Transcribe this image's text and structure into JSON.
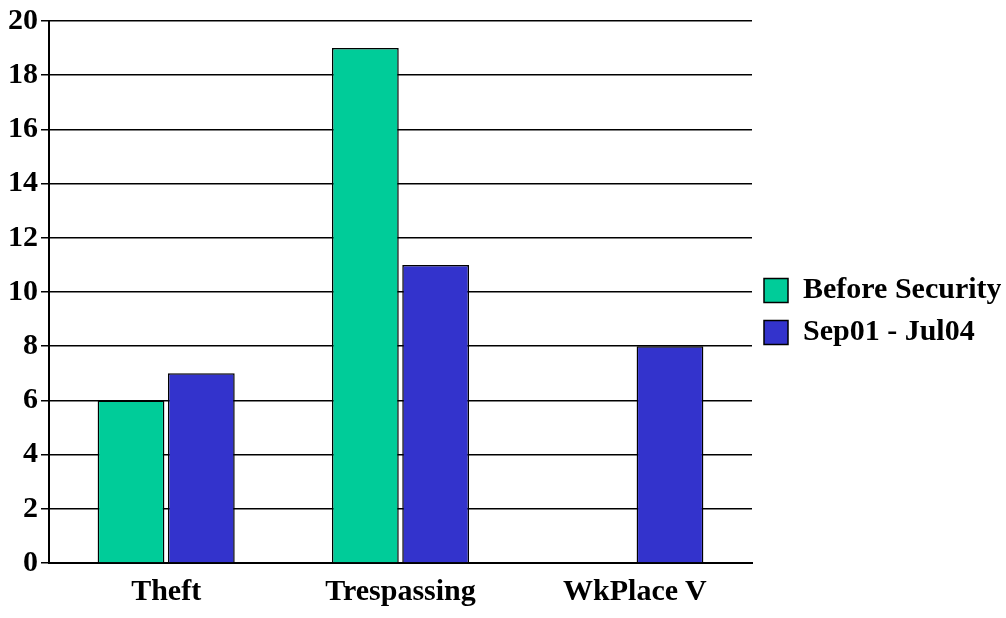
{
  "chart_data": {
    "type": "bar",
    "categories": [
      "Theft",
      "Trespassing",
      "WkPlace V"
    ],
    "series": [
      {
        "name": "Before Security",
        "color": "#00cc99",
        "values": [
          6,
          19,
          0
        ]
      },
      {
        "name": "Sep01 - Jul04",
        "color": "#3333cc",
        "values": [
          7,
          11,
          8
        ]
      }
    ],
    "ylim": [
      0,
      20
    ],
    "yticks": [
      0,
      2,
      4,
      6,
      8,
      10,
      12,
      14,
      16,
      18,
      20
    ],
    "grid": "y",
    "legend": "right"
  }
}
